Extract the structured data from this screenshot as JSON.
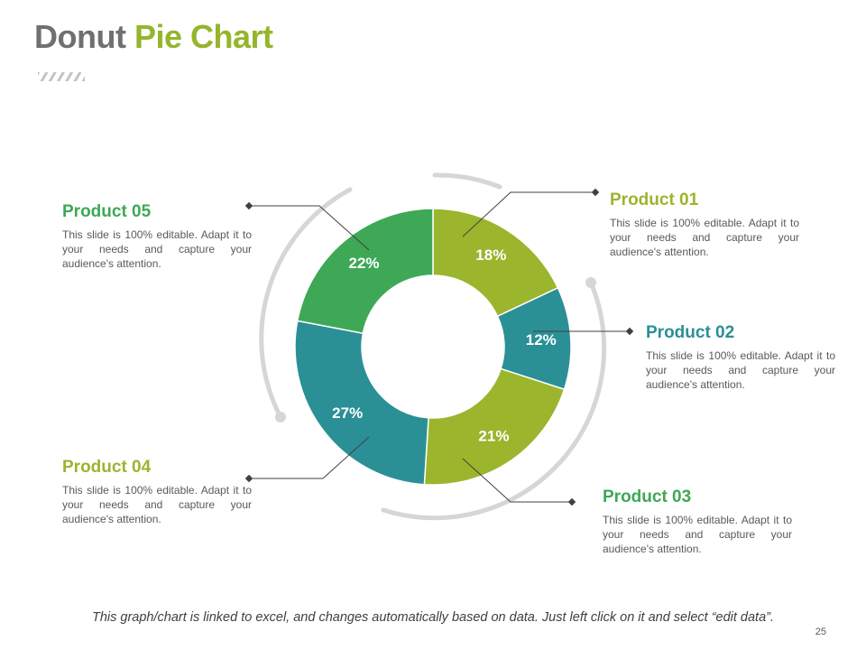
{
  "title": {
    "part1": "Donut",
    "part2": "Pie Chart"
  },
  "colors": {
    "green": "#3ea856",
    "lime": "#9bb52d",
    "teal": "#2b8f96",
    "gray": "#707070"
  },
  "chart_data": {
    "type": "pie",
    "variant": "donut",
    "title": "Donut Pie Chart",
    "categories": [
      "Product 01",
      "Product 02",
      "Product 03",
      "Product 04",
      "Product 05"
    ],
    "values": [
      18,
      12,
      21,
      27,
      22
    ],
    "labels": [
      "18%",
      "12%",
      "21%",
      "27%",
      "22%"
    ],
    "colors": [
      "#9bb52d",
      "#2b8f96",
      "#9bb52d",
      "#2b8f96",
      "#3ea856"
    ]
  },
  "products": [
    {
      "name": "Product 01",
      "desc": "This slide is 100% editable. Adapt it to your needs and capture your audience's attention."
    },
    {
      "name": "Product 02",
      "desc": "This slide is 100% editable. Adapt it to your needs and capture your audience's attention."
    },
    {
      "name": "Product 03",
      "desc": "This slide is 100% editable. Adapt it to your needs and capture your audience's attention."
    },
    {
      "name": "Product 04",
      "desc": "This slide is 100% editable. Adapt it to your needs and capture your audience's attention."
    },
    {
      "name": "Product 05",
      "desc": "This slide is 100% editable. Adapt it to your needs and capture your audience's attention."
    }
  ],
  "footer": "This graph/chart is linked to excel, and changes automatically based on data. Just left click on it and select “edit data”.",
  "page_number": "25"
}
